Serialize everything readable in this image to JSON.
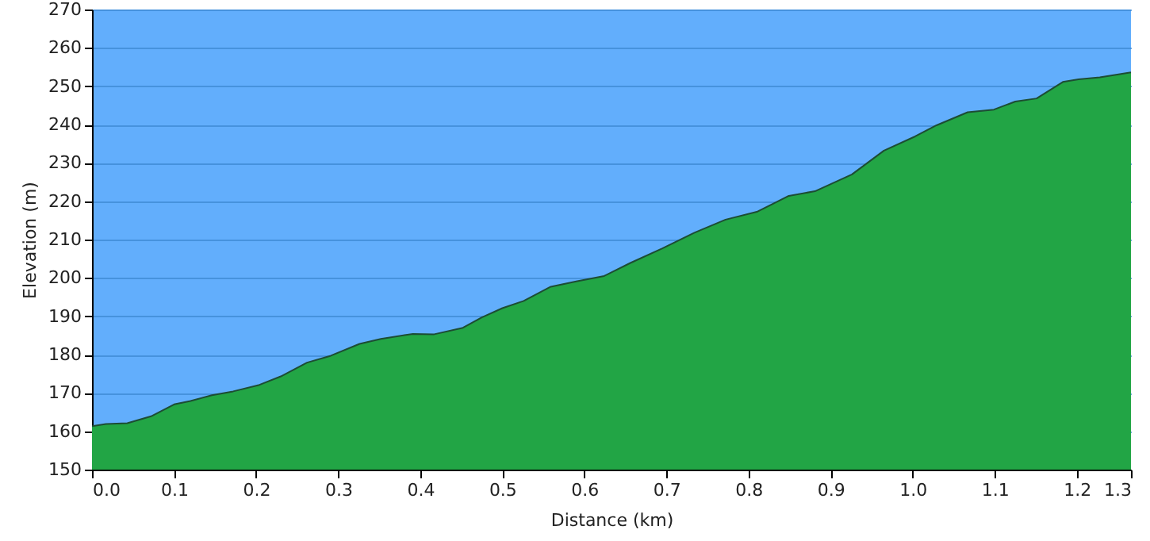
{
  "chart_data": {
    "type": "area",
    "xlabel": "Distance   (km)",
    "ylabel": "Elevation (m)",
    "x": [
      0,
      0.017,
      0.043,
      0.072,
      0.1,
      0.12,
      0.146,
      0.172,
      0.204,
      0.23,
      0.262,
      0.291,
      0.326,
      0.352,
      0.391,
      0.417,
      0.452,
      0.475,
      0.5,
      0.526,
      0.559,
      0.59,
      0.624,
      0.656,
      0.695,
      0.734,
      0.772,
      0.811,
      0.849,
      0.881,
      0.926,
      0.965,
      1.003,
      1.029,
      1.067,
      1.099,
      1.125,
      1.151,
      1.183,
      1.202,
      1.228,
      1.266
    ],
    "series": [
      {
        "color": "#22a545",
        "values": [
          161.3,
          161.9,
          162.1,
          163.9,
          167,
          167.9,
          169.4,
          170.4,
          172.1,
          174.3,
          177.9,
          179.7,
          182.8,
          184.1,
          185.4,
          185.3,
          187,
          189.7,
          192.1,
          194,
          197.7,
          199.1,
          200.5,
          203.9,
          207.7,
          211.8,
          215.2,
          217.3,
          221.4,
          222.6,
          227,
          233.2,
          236.9,
          239.8,
          243.2,
          243.9,
          246,
          246.8,
          251.1,
          251.8,
          252.3,
          253.6
        ]
      }
    ],
    "xlim": [
      0,
      1.266
    ],
    "xticks": [
      {
        "value": 0,
        "label": "0.0"
      },
      0.1,
      0.2,
      0.3,
      0.4,
      0.5,
      0.6,
      0.7,
      0.8,
      0.9,
      {
        "value": 1,
        "label": "1.0"
      },
      1.1,
      1.2,
      {
        "value": 1.266,
        "label": "1.3"
      }
    ],
    "ylim": [
      150,
      270
    ],
    "yticks": [
      150,
      160,
      170,
      180,
      190,
      200,
      210,
      220,
      230,
      240,
      250,
      260,
      270
    ],
    "grid": "y"
  }
}
